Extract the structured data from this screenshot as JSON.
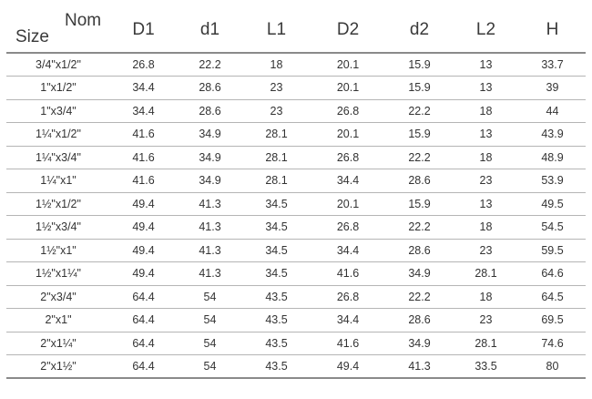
{
  "table": {
    "corner": {
      "nom_label": "Nom",
      "size_label": "Size"
    },
    "columns": [
      "D1",
      "d1",
      "L1",
      "D2",
      "d2",
      "L2",
      "H"
    ],
    "rows": [
      {
        "size": "3/4\"x1/2\"",
        "values": [
          "26.8",
          "22.2",
          "18",
          "20.1",
          "15.9",
          "13",
          "33.7"
        ]
      },
      {
        "size": "1\"x1/2\"",
        "values": [
          "34.4",
          "28.6",
          "23",
          "20.1",
          "15.9",
          "13",
          "39"
        ]
      },
      {
        "size": "1\"x3/4\"",
        "values": [
          "34.4",
          "28.6",
          "23",
          "26.8",
          "22.2",
          "18",
          "44"
        ]
      },
      {
        "size": "1¼\"x1/2\"",
        "values": [
          "41.6",
          "34.9",
          "28.1",
          "20.1",
          "15.9",
          "13",
          "43.9"
        ]
      },
      {
        "size": "1¼\"x3/4\"",
        "values": [
          "41.6",
          "34.9",
          "28.1",
          "26.8",
          "22.2",
          "18",
          "48.9"
        ]
      },
      {
        "size": "1¼\"x1\"",
        "values": [
          "41.6",
          "34.9",
          "28.1",
          "34.4",
          "28.6",
          "23",
          "53.9"
        ]
      },
      {
        "size": "1½\"x1/2\"",
        "values": [
          "49.4",
          "41.3",
          "34.5",
          "20.1",
          "15.9",
          "13",
          "49.5"
        ]
      },
      {
        "size": "1½\"x3/4\"",
        "values": [
          "49.4",
          "41.3",
          "34.5",
          "26.8",
          "22.2",
          "18",
          "54.5"
        ]
      },
      {
        "size": "1½\"x1\"",
        "values": [
          "49.4",
          "41.3",
          "34.5",
          "34.4",
          "28.6",
          "23",
          "59.5"
        ]
      },
      {
        "size": "1½\"x1¼\"",
        "values": [
          "49.4",
          "41.3",
          "34.5",
          "41.6",
          "34.9",
          "28.1",
          "64.6"
        ]
      },
      {
        "size": "2\"x3/4\"",
        "values": [
          "64.4",
          "54",
          "43.5",
          "26.8",
          "22.2",
          "18",
          "64.5"
        ]
      },
      {
        "size": "2\"x1\"",
        "values": [
          "64.4",
          "54",
          "43.5",
          "34.4",
          "28.6",
          "23",
          "69.5"
        ]
      },
      {
        "size": "2\"x1¼\"",
        "values": [
          "64.4",
          "54",
          "43.5",
          "41.6",
          "34.9",
          "28.1",
          "74.6"
        ]
      },
      {
        "size": "2\"x1½\"",
        "values": [
          "64.4",
          "54",
          "43.5",
          "49.4",
          "41.3",
          "33.5",
          "80"
        ]
      }
    ]
  }
}
